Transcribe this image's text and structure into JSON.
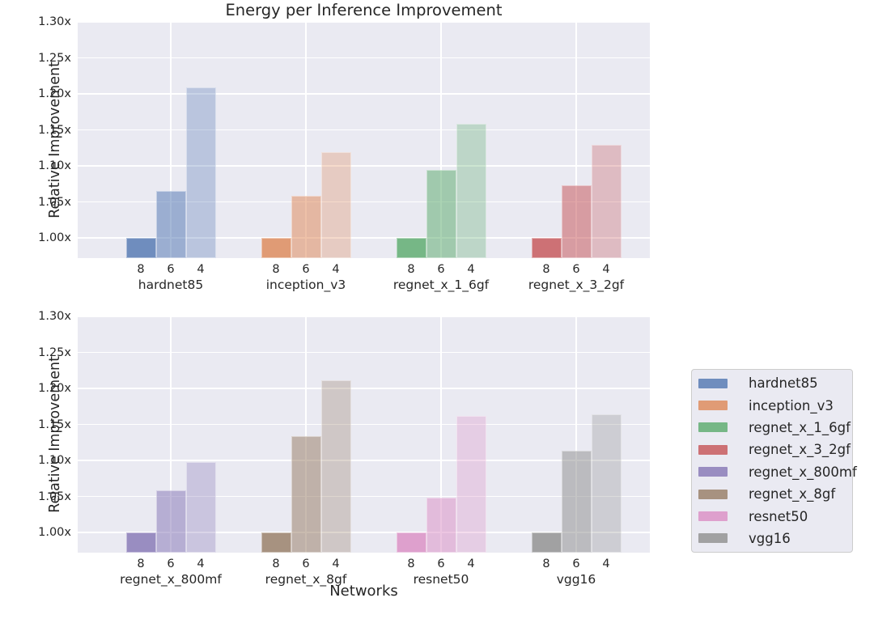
{
  "chart_data": {
    "type": "bar",
    "title": "Energy per Inference Improvement",
    "xlabel": "Networks",
    "ylabel": "Relative Improvement",
    "ylim": [
      0.972,
      1.3
    ],
    "grid": true,
    "ytick_values": [
      1.0,
      1.05,
      1.1,
      1.15,
      1.2,
      1.25,
      1.3
    ],
    "ytick_labels": [
      "1.00x",
      "1.05x",
      "1.10x",
      "1.15x",
      "1.20x",
      "1.25x",
      "1.30x"
    ],
    "bit_width_labels": [
      "8",
      "6",
      "4"
    ],
    "bar_opacities": [
      0.78,
      0.5,
      0.3
    ],
    "plot_bg_color": "#eaeaf2",
    "grid_color": "#ffffff",
    "subplots": [
      {
        "groups": [
          {
            "name": "hardnet85",
            "color": "#4c72b0",
            "values": [
              1.0,
              1.065,
              1.209
            ]
          },
          {
            "name": "inception_v3",
            "color": "#dd8452",
            "values": [
              1.0,
              1.058,
              1.119
            ]
          },
          {
            "name": "regnet_x_1_6gf",
            "color": "#55a868",
            "values": [
              1.0,
              1.094,
              1.159
            ]
          },
          {
            "name": "regnet_x_3_2gf",
            "color": "#c44e52",
            "values": [
              1.0,
              1.073,
              1.129
            ]
          }
        ]
      },
      {
        "groups": [
          {
            "name": "regnet_x_800mf",
            "color": "#8172b3",
            "values": [
              1.0,
              1.058,
              1.098
            ]
          },
          {
            "name": "regnet_x_8gf",
            "color": "#937860",
            "values": [
              1.0,
              1.134,
              1.211
            ]
          },
          {
            "name": "resnet50",
            "color": "#da8bc3",
            "values": [
              1.0,
              1.048,
              1.162
            ]
          },
          {
            "name": "vgg16",
            "color": "#8c8c8c",
            "values": [
              1.0,
              1.113,
              1.164
            ]
          }
        ]
      }
    ],
    "legend": {
      "position": "right",
      "entries": [
        {
          "label": "hardnet85",
          "color": "#4c72b0"
        },
        {
          "label": "inception_v3",
          "color": "#dd8452"
        },
        {
          "label": "regnet_x_1_6gf",
          "color": "#55a868"
        },
        {
          "label": "regnet_x_3_2gf",
          "color": "#c44e52"
        },
        {
          "label": "regnet_x_800mf",
          "color": "#8172b3"
        },
        {
          "label": "regnet_x_8gf",
          "color": "#937860"
        },
        {
          "label": "resnet50",
          "color": "#da8bc3"
        },
        {
          "label": "vgg16",
          "color": "#8c8c8c"
        }
      ]
    }
  }
}
